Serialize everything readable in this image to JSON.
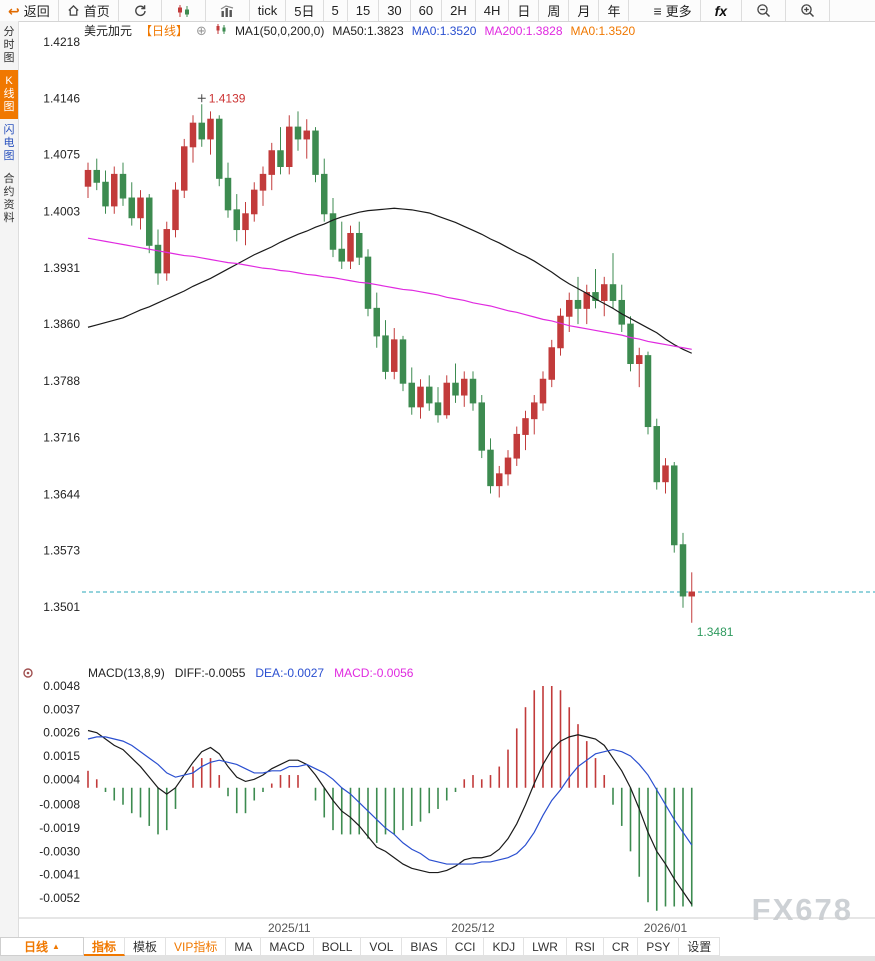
{
  "toolbar": {
    "back_label": "返回",
    "home_label": "首页",
    "timeframes": [
      "tick",
      "5日",
      "5",
      "15",
      "30",
      "60",
      "2H",
      "4H",
      "日",
      "周",
      "月",
      "年"
    ],
    "more_label": "更多",
    "fx_label": "fx"
  },
  "sidebar": {
    "items": [
      {
        "label": "分时图",
        "selected": false
      },
      {
        "label": "K线图",
        "selected": true
      },
      {
        "label": "闪电图",
        "selected": false
      },
      {
        "label": "合约资料",
        "selected": false
      }
    ]
  },
  "chart_header": {
    "symbol": "美元加元",
    "period_tag": "【日线】",
    "ma_settings": "MA1(50,0,200,0)",
    "ma_values": [
      {
        "label": "MA50:1.3823",
        "color": "#222222"
      },
      {
        "label": "MA0:1.3520",
        "color": "#2a4fd0"
      },
      {
        "label": "MA200:1.3828",
        "color": "#e02ae0"
      },
      {
        "label": "MA0:1.3520",
        "color": "#f07800"
      }
    ]
  },
  "macd_header": {
    "title": "MACD(13,8,9)",
    "diff_label": "DIFF:-0.0055",
    "dea_label": "DEA:-0.0027",
    "macd_label": "MACD:-0.0056"
  },
  "bottom_bar": {
    "period_selector": "日线",
    "tabs": [
      "指标",
      "模板",
      "VIP指标",
      "MA",
      "MACD",
      "BOLL",
      "VOL",
      "BIAS",
      "CCI",
      "KDJ",
      "LWR",
      "RSI",
      "CR",
      "PSY",
      "设置"
    ]
  },
  "watermark": "FX678",
  "colors": {
    "up": "#c23b3b",
    "down": "#3d8b50",
    "ma50": "#1a1a1a",
    "ma200": "#e02ae0",
    "price_line": "#2aa7b8",
    "diff": "#1a1a1a",
    "dea": "#2a4fd0",
    "hist_up": "#c23b3b",
    "hist_down": "#3d8b50",
    "annotation_up": "#cc3333",
    "annotation_down": "#2e9a5e",
    "accent_orange": "#f07800",
    "axis_text": "#222222",
    "x_axis_text": "#555555"
  },
  "chart_data": [
    {
      "type": "candlestick",
      "title": "美元加元 日线",
      "ylim": [
        1.3501,
        1.4218
      ],
      "y_ticks": [
        1.4218,
        1.4146,
        1.4075,
        1.4003,
        1.3931,
        1.386,
        1.3788,
        1.3716,
        1.3644,
        1.3573,
        1.3501
      ],
      "x_ticks": [
        {
          "label": "2025/11",
          "index": 23
        },
        {
          "label": "2025/12",
          "index": 44
        },
        {
          "label": "2026/01",
          "index": 66
        }
      ],
      "current_price_line": 1.352,
      "annotations": [
        {
          "text": "1.4139",
          "index": 13,
          "price": 1.4139,
          "position": "high"
        },
        {
          "text": "1.3481",
          "index": 69,
          "price": 1.3481,
          "position": "low"
        }
      ],
      "candles_ohlc": [
        [
          1.4035,
          1.4065,
          1.402,
          1.4055
        ],
        [
          1.4055,
          1.407,
          1.403,
          1.404
        ],
        [
          1.404,
          1.4055,
          1.4,
          1.401
        ],
        [
          1.401,
          1.406,
          1.4,
          1.405
        ],
        [
          1.405,
          1.4065,
          1.401,
          1.402
        ],
        [
          1.402,
          1.404,
          1.3985,
          1.3995
        ],
        [
          1.3995,
          1.403,
          1.398,
          1.402
        ],
        [
          1.402,
          1.4025,
          1.395,
          1.396
        ],
        [
          1.396,
          1.398,
          1.391,
          1.3925
        ],
        [
          1.3925,
          1.399,
          1.3915,
          1.398
        ],
        [
          1.398,
          1.404,
          1.397,
          1.403
        ],
        [
          1.403,
          1.4095,
          1.402,
          1.4085
        ],
        [
          1.4085,
          1.4125,
          1.4065,
          1.4115
        ],
        [
          1.4115,
          1.4139,
          1.4085,
          1.4095
        ],
        [
          1.4095,
          1.413,
          1.4075,
          1.412
        ],
        [
          1.412,
          1.4125,
          1.4035,
          1.4045
        ],
        [
          1.4045,
          1.4065,
          1.3995,
          1.4005
        ],
        [
          1.4005,
          1.4025,
          1.3965,
          1.398
        ],
        [
          1.398,
          1.4015,
          1.396,
          1.4
        ],
        [
          1.4,
          1.404,
          1.399,
          1.403
        ],
        [
          1.403,
          1.406,
          1.401,
          1.405
        ],
        [
          1.405,
          1.409,
          1.403,
          1.408
        ],
        [
          1.408,
          1.411,
          1.405,
          1.406
        ],
        [
          1.406,
          1.4125,
          1.405,
          1.411
        ],
        [
          1.411,
          1.413,
          1.408,
          1.4095
        ],
        [
          1.4095,
          1.412,
          1.407,
          1.4105
        ],
        [
          1.4105,
          1.411,
          1.404,
          1.405
        ],
        [
          1.405,
          1.407,
          1.399,
          1.4
        ],
        [
          1.4,
          1.402,
          1.3945,
          1.3955
        ],
        [
          1.3955,
          1.399,
          1.393,
          1.394
        ],
        [
          1.394,
          1.3985,
          1.393,
          1.3975
        ],
        [
          1.3975,
          1.399,
          1.3935,
          1.3945
        ],
        [
          1.3945,
          1.3955,
          1.387,
          1.388
        ],
        [
          1.388,
          1.39,
          1.383,
          1.3845
        ],
        [
          1.3845,
          1.3865,
          1.379,
          1.38
        ],
        [
          1.38,
          1.3855,
          1.379,
          1.384
        ],
        [
          1.384,
          1.3845,
          1.3775,
          1.3785
        ],
        [
          1.3785,
          1.3805,
          1.3745,
          1.3755
        ],
        [
          1.3755,
          1.379,
          1.374,
          1.378
        ],
        [
          1.378,
          1.3795,
          1.375,
          1.376
        ],
        [
          1.376,
          1.378,
          1.3735,
          1.3745
        ],
        [
          1.3745,
          1.3795,
          1.374,
          1.3785
        ],
        [
          1.3785,
          1.381,
          1.376,
          1.377
        ],
        [
          1.377,
          1.38,
          1.3755,
          1.379
        ],
        [
          1.379,
          1.38,
          1.375,
          1.376
        ],
        [
          1.376,
          1.377,
          1.369,
          1.37
        ],
        [
          1.37,
          1.3715,
          1.3645,
          1.3655
        ],
        [
          1.3655,
          1.368,
          1.364,
          1.367
        ],
        [
          1.367,
          1.37,
          1.3655,
          1.369
        ],
        [
          1.369,
          1.373,
          1.368,
          1.372
        ],
        [
          1.372,
          1.375,
          1.37,
          1.374
        ],
        [
          1.374,
          1.377,
          1.372,
          1.376
        ],
        [
          1.376,
          1.38,
          1.375,
          1.379
        ],
        [
          1.379,
          1.384,
          1.378,
          1.383
        ],
        [
          1.383,
          1.388,
          1.382,
          1.387
        ],
        [
          1.387,
          1.39,
          1.385,
          1.389
        ],
        [
          1.389,
          1.392,
          1.386,
          1.388
        ],
        [
          1.388,
          1.391,
          1.386,
          1.39
        ],
        [
          1.39,
          1.393,
          1.388,
          1.389
        ],
        [
          1.389,
          1.392,
          1.387,
          1.391
        ],
        [
          1.391,
          1.395,
          1.388,
          1.389
        ],
        [
          1.389,
          1.391,
          1.385,
          1.386
        ],
        [
          1.386,
          1.387,
          1.38,
          1.381
        ],
        [
          1.381,
          1.383,
          1.378,
          1.382
        ],
        [
          1.382,
          1.3825,
          1.372,
          1.373
        ],
        [
          1.373,
          1.374,
          1.365,
          1.366
        ],
        [
          1.366,
          1.369,
          1.3645,
          1.368
        ],
        [
          1.368,
          1.3685,
          1.357,
          1.358
        ],
        [
          1.358,
          1.3595,
          1.35,
          1.3515
        ],
        [
          1.3515,
          1.3545,
          1.3481,
          1.352
        ]
      ],
      "series": [
        {
          "name": "MA50",
          "color": "#1a1a1a",
          "values": [
            1.3856,
            1.3859,
            1.3862,
            1.3865,
            1.3868,
            1.3873,
            1.3878,
            1.3882,
            1.3887,
            1.3892,
            1.3897,
            1.3902,
            1.3908,
            1.3913,
            1.3918,
            1.3924,
            1.393,
            1.3936,
            1.3942,
            1.3948,
            1.3953,
            1.3958,
            1.3964,
            1.3969,
            1.3974,
            1.3978,
            1.3983,
            1.3987,
            1.3992,
            1.3996,
            1.3999,
            1.4002,
            1.4004,
            1.4005,
            1.4006,
            1.4007,
            1.4006,
            1.4005,
            1.4003,
            1.4001,
            1.3997,
            1.3993,
            1.3989,
            1.3984,
            1.3979,
            1.3974,
            1.3968,
            1.3963,
            1.3957,
            1.3951,
            1.3946,
            1.394,
            1.3933,
            1.3926,
            1.3918,
            1.3911,
            1.3905,
            1.3899,
            1.3892,
            1.3886,
            1.388,
            1.3873,
            1.3867,
            1.3861,
            1.3855,
            1.3849,
            1.3841,
            1.3834,
            1.3828,
            1.3823
          ]
        },
        {
          "name": "MA200",
          "color": "#e02ae0",
          "values": [
            1.3969,
            1.3967,
            1.3965,
            1.3963,
            1.3961,
            1.3959,
            1.3957,
            1.3955,
            1.3953,
            1.3951,
            1.3949,
            1.3947,
            1.3946,
            1.3944,
            1.3942,
            1.394,
            1.3938,
            1.3937,
            1.3935,
            1.3933,
            1.3931,
            1.393,
            1.3928,
            1.3927,
            1.3925,
            1.3923,
            1.3922,
            1.392,
            1.3919,
            1.3917,
            1.3915,
            1.3913,
            1.3912,
            1.391,
            1.3908,
            1.3906,
            1.3904,
            1.3903,
            1.3901,
            1.3899,
            1.3897,
            1.3894,
            1.3892,
            1.389,
            1.3887,
            1.3885,
            1.3883,
            1.388,
            1.3877,
            1.3875,
            1.3872,
            1.3869,
            1.3866,
            1.3864,
            1.3861,
            1.3858,
            1.3856,
            1.3854,
            1.3852,
            1.385,
            1.3848,
            1.3846,
            1.3843,
            1.3841,
            1.3838,
            1.3836,
            1.3834,
            1.3832,
            1.383,
            1.3828
          ]
        }
      ]
    },
    {
      "type": "macd",
      "params": "MACD(13,8,9)",
      "ylim": [
        -0.0052,
        0.0048
      ],
      "y_ticks": [
        0.0048,
        0.0037,
        0.0026,
        0.0015,
        0.0004,
        -0.0008,
        -0.0019,
        -0.003,
        -0.0041,
        -0.0052
      ],
      "diff": [
        0.0027,
        0.0026,
        0.0023,
        0.002,
        0.0018,
        0.0014,
        0.001,
        0.0005,
        0.0,
        -0.0003,
        0.0,
        0.0006,
        0.0012,
        0.0017,
        0.0019,
        0.0016,
        0.001,
        0.0005,
        0.0003,
        0.0004,
        0.0006,
        0.0009,
        0.0011,
        0.0013,
        0.0013,
        0.0011,
        0.0006,
        0.0,
        -0.0006,
        -0.0011,
        -0.0014,
        -0.0018,
        -0.0023,
        -0.0028,
        -0.003,
        -0.0033,
        -0.0036,
        -0.0038,
        -0.0039,
        -0.004,
        -0.004,
        -0.0039,
        -0.0037,
        -0.0034,
        -0.0033,
        -0.0033,
        -0.0032,
        -0.0029,
        -0.0024,
        -0.0017,
        -0.0008,
        0.0002,
        0.0011,
        0.0018,
        0.0022,
        0.0024,
        0.0025,
        0.0024,
        0.0023,
        0.002,
        0.0014,
        0.0008,
        0.0,
        -0.001,
        -0.0021,
        -0.003,
        -0.0036,
        -0.0043,
        -0.0049,
        -0.0055
      ],
      "dea": [
        0.0023,
        0.0024,
        0.0024,
        0.0023,
        0.0022,
        0.002,
        0.0017,
        0.0014,
        0.0011,
        0.0007,
        0.0005,
        0.0006,
        0.0007,
        0.001,
        0.0012,
        0.0013,
        0.0012,
        0.0011,
        0.0009,
        0.0007,
        0.0007,
        0.0008,
        0.0008,
        0.001,
        0.001,
        0.0011,
        0.0009,
        0.0007,
        0.0004,
        0.0,
        -0.0003,
        -0.0007,
        -0.0011,
        -0.0015,
        -0.0019,
        -0.0022,
        -0.0026,
        -0.0029,
        -0.0031,
        -0.0034,
        -0.0035,
        -0.0036,
        -0.0036,
        -0.0036,
        -0.0036,
        -0.0035,
        -0.0035,
        -0.0034,
        -0.0033,
        -0.0031,
        -0.0027,
        -0.0021,
        -0.0013,
        -0.0006,
        -0.0001,
        0.0005,
        0.001,
        0.0013,
        0.0016,
        0.0017,
        0.0018,
        0.0017,
        0.0015,
        0.0011,
        0.0006,
        -0.0001,
        -0.0008,
        -0.0015,
        -0.0021,
        -0.0027
      ]
    }
  ]
}
